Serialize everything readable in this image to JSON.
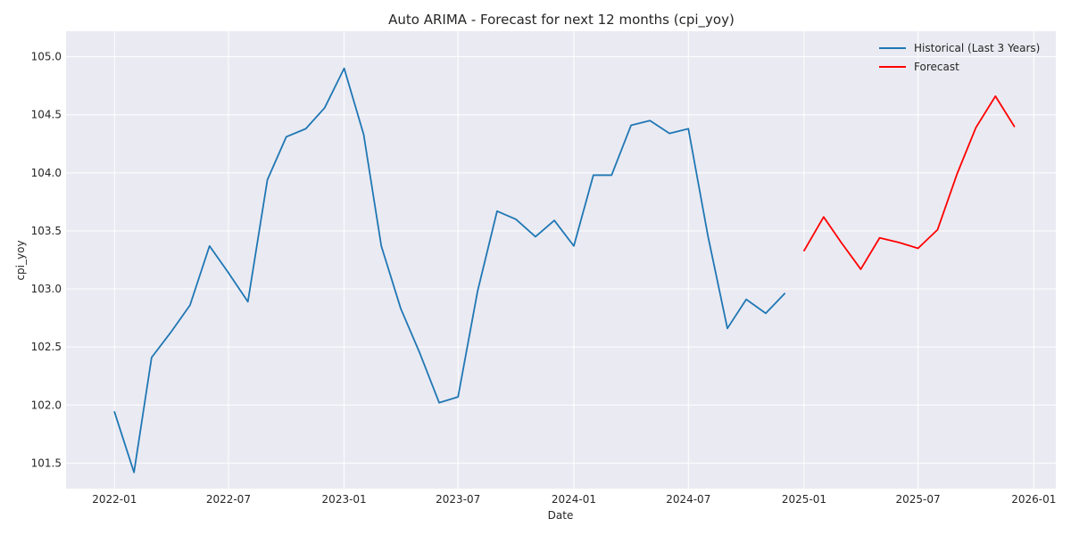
{
  "chart_data": {
    "type": "line",
    "title": "Auto ARIMA - Forecast for next 12 months (cpi_yoy)",
    "xlabel": "Date",
    "ylabel": "cpi_yoy",
    "ylim": [
      101.28,
      105.22
    ],
    "xlim": [
      "2021-10-16",
      "2026-02-05"
    ],
    "x_ticks": [
      "2022-01",
      "2022-07",
      "2023-01",
      "2023-07",
      "2024-01",
      "2024-07",
      "2025-01",
      "2025-07",
      "2026-01"
    ],
    "y_ticks": [
      101.5,
      102.0,
      102.5,
      103.0,
      103.5,
      104.0,
      104.5,
      105.0
    ],
    "y_tick_labels": [
      "101.5",
      "102.0",
      "102.5",
      "103.0",
      "103.5",
      "104.0",
      "104.5",
      "105.0"
    ],
    "grid": true,
    "legend_position": "top-right",
    "series": [
      {
        "name": "Historical (Last 3 Years)",
        "color": "#1f77b4",
        "points": [
          [
            "2022-01",
            101.94
          ],
          [
            "2022-02",
            101.42
          ],
          [
            "2022-03",
            102.41
          ],
          [
            "2022-04",
            102.63
          ],
          [
            "2022-05",
            102.86
          ],
          [
            "2022-06",
            103.37
          ],
          [
            "2022-07",
            103.14
          ],
          [
            "2022-08",
            102.89
          ],
          [
            "2022-09",
            103.94
          ],
          [
            "2022-10",
            104.31
          ],
          [
            "2022-11",
            104.38
          ],
          [
            "2022-12",
            104.56
          ],
          [
            "2023-01",
            104.9
          ],
          [
            "2023-02",
            104.33
          ],
          [
            "2023-03",
            103.37
          ],
          [
            "2023-04",
            102.83
          ],
          [
            "2023-05",
            102.45
          ],
          [
            "2023-06",
            102.02
          ],
          [
            "2023-07",
            102.07
          ],
          [
            "2023-08",
            102.98
          ],
          [
            "2023-09",
            103.67
          ],
          [
            "2023-10",
            103.6
          ],
          [
            "2023-11",
            103.45
          ],
          [
            "2023-12",
            103.59
          ],
          [
            "2024-01",
            103.37
          ],
          [
            "2024-02",
            103.98
          ],
          [
            "2024-03",
            103.98
          ],
          [
            "2024-04",
            104.41
          ],
          [
            "2024-05",
            104.45
          ],
          [
            "2024-06",
            104.34
          ],
          [
            "2024-07",
            104.38
          ],
          [
            "2024-08",
            103.46
          ],
          [
            "2024-09",
            102.66
          ],
          [
            "2024-10",
            102.91
          ],
          [
            "2024-11",
            102.79
          ],
          [
            "2024-12",
            102.96
          ]
        ]
      },
      {
        "name": "Forecast",
        "color": "#ff0000",
        "points": [
          [
            "2025-01",
            103.33
          ],
          [
            "2025-02",
            103.62
          ],
          [
            "2025-03",
            103.4
          ],
          [
            "2025-04",
            103.17
          ],
          [
            "2025-05",
            103.44
          ],
          [
            "2025-06",
            103.4
          ],
          [
            "2025-07",
            103.35
          ],
          [
            "2025-08",
            103.51
          ],
          [
            "2025-09",
            103.99
          ],
          [
            "2025-10",
            104.39
          ],
          [
            "2025-11",
            104.66
          ],
          [
            "2025-12",
            104.4
          ]
        ]
      }
    ]
  }
}
